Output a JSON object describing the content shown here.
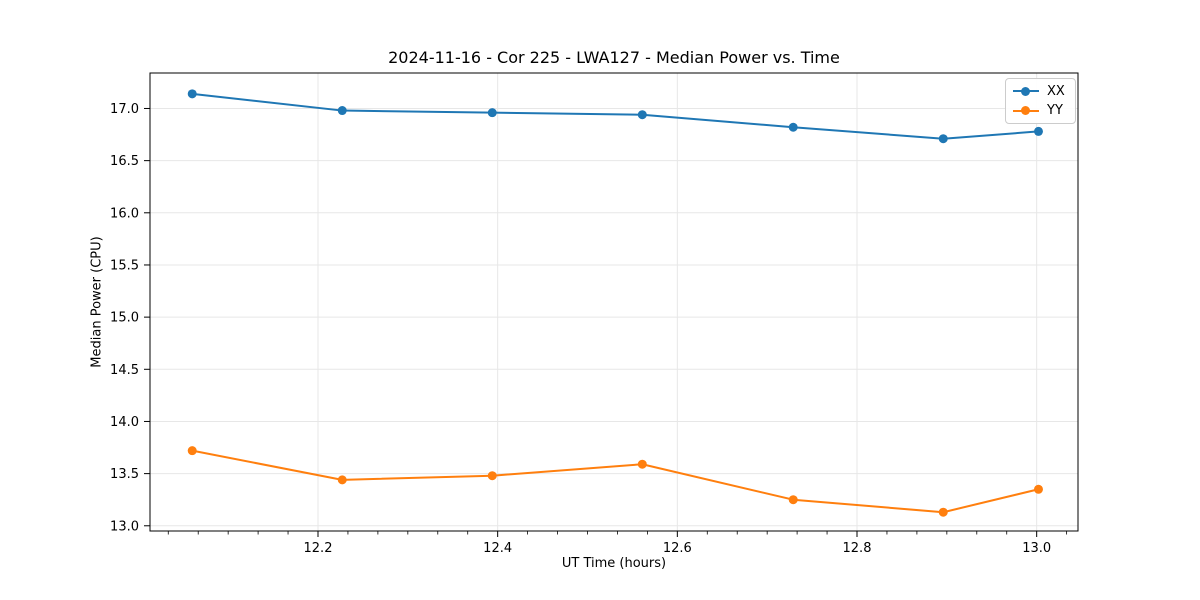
{
  "chart_data": {
    "type": "line",
    "title": "2024-11-16 - Cor 225 - LWA127 - Median Power vs. Time",
    "xlabel": "UT Time (hours)",
    "ylabel": "Median Power (CPU)",
    "x": [
      12.06,
      12.227,
      12.394,
      12.561,
      12.729,
      12.896,
      13.002
    ],
    "series": [
      {
        "name": "XX",
        "color": "#1f77b4",
        "values": [
          17.14,
          16.98,
          16.96,
          16.94,
          16.82,
          16.71,
          16.78
        ]
      },
      {
        "name": "YY",
        "color": "#ff7f0e",
        "values": [
          13.72,
          13.44,
          13.48,
          13.59,
          13.25,
          13.13,
          13.35
        ]
      }
    ],
    "xlim": [
      12.013,
      13.046
    ],
    "ylim": [
      12.95,
      17.34
    ],
    "xticks": [
      12.2,
      12.4,
      12.6,
      12.8,
      13.0
    ],
    "xtick_labels": [
      "12.2",
      "12.4",
      "12.6",
      "12.8",
      "13.0"
    ],
    "yticks": [
      13.0,
      13.5,
      14.0,
      14.5,
      15.0,
      15.5,
      16.0,
      16.5,
      17.0
    ],
    "ytick_labels": [
      "13.0",
      "13.5",
      "14.0",
      "14.5",
      "15.0",
      "15.5",
      "16.0",
      "16.5",
      "17.0"
    ],
    "x_minor_step": 0.0333333,
    "grid": true,
    "legend_position": "top-right",
    "marker": "o",
    "colors": {
      "grid": "#e7e7e7",
      "axis": "#000000",
      "background": "#ffffff"
    }
  }
}
